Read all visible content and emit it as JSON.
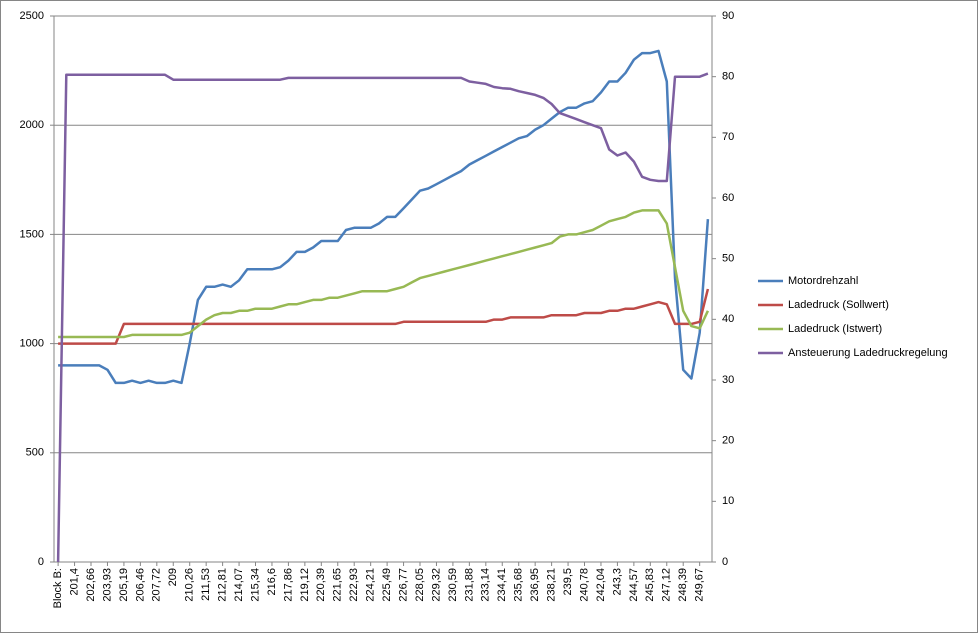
{
  "chart_data": {
    "type": "line",
    "categories": [
      "Block B:",
      null,
      "201,4",
      null,
      "202,66",
      null,
      "203,93",
      null,
      "205,19",
      null,
      "206,46",
      null,
      "207,72",
      null,
      "209",
      null,
      "210,26",
      null,
      "211,53",
      null,
      "212,81",
      null,
      "214,07",
      null,
      "215,34",
      null,
      "216,6",
      null,
      "217,86",
      null,
      "219,12",
      null,
      "220,39",
      null,
      "221,65",
      null,
      "222,93",
      null,
      "224,21",
      null,
      "225,49",
      null,
      "226,77",
      null,
      "228,05",
      null,
      "229,32",
      null,
      "230,59",
      null,
      "231,88",
      null,
      "233,14",
      null,
      "234,41",
      null,
      "235,68",
      null,
      "236,95",
      null,
      "238,21",
      null,
      "239,5",
      null,
      "240,78",
      null,
      "242,04",
      null,
      "243,3",
      null,
      "244,57",
      null,
      "245,83",
      null,
      "247,12",
      null,
      "248,39",
      null,
      "249,67",
      null
    ],
    "series": [
      {
        "name": "Motordrehzahl",
        "color": "#4a7ebb",
        "values": [
          900,
          900,
          900,
          900,
          900,
          900,
          880,
          820,
          820,
          830,
          820,
          830,
          820,
          820,
          830,
          820,
          1000,
          1200,
          1260,
          1260,
          1270,
          1260,
          1290,
          1340,
          1340,
          1340,
          1340,
          1350,
          1380,
          1420,
          1420,
          1440,
          1470,
          1470,
          1470,
          1520,
          1530,
          1530,
          1530,
          1550,
          1580,
          1580,
          1620,
          1660,
          1700,
          1710,
          1730,
          1750,
          1770,
          1790,
          1820,
          1840,
          1860,
          1880,
          1900,
          1920,
          1940,
          1950,
          1980,
          2000,
          2030,
          2060,
          2080,
          2080,
          2100,
          2110,
          2150,
          2200,
          2200,
          2240,
          2300,
          2330,
          2330,
          2340,
          2200,
          1300,
          880,
          840,
          1050,
          1570
        ]
      },
      {
        "name": "Ladedruck (Sollwert)",
        "color": "#be4b48",
        "values": [
          1000,
          1000,
          1000,
          1000,
          1000,
          1000,
          1000,
          1000,
          1090,
          1090,
          1090,
          1090,
          1090,
          1090,
          1090,
          1090,
          1090,
          1090,
          1090,
          1090,
          1090,
          1090,
          1090,
          1090,
          1090,
          1090,
          1090,
          1090,
          1090,
          1090,
          1090,
          1090,
          1090,
          1090,
          1090,
          1090,
          1090,
          1090,
          1090,
          1090,
          1090,
          1090,
          1100,
          1100,
          1100,
          1100,
          1100,
          1100,
          1100,
          1100,
          1100,
          1100,
          1100,
          1110,
          1110,
          1120,
          1120,
          1120,
          1120,
          1120,
          1130,
          1130,
          1130,
          1130,
          1140,
          1140,
          1140,
          1150,
          1150,
          1160,
          1160,
          1170,
          1180,
          1190,
          1180,
          1090,
          1090,
          1090,
          1100,
          1250
        ]
      },
      {
        "name": "Ladedruck (Istwert)",
        "color": "#98b954",
        "values": [
          1030,
          1030,
          1030,
          1030,
          1030,
          1030,
          1030,
          1030,
          1030,
          1040,
          1040,
          1040,
          1040,
          1040,
          1040,
          1040,
          1050,
          1080,
          1110,
          1130,
          1140,
          1140,
          1150,
          1150,
          1160,
          1160,
          1160,
          1170,
          1180,
          1180,
          1190,
          1200,
          1200,
          1210,
          1210,
          1220,
          1230,
          1240,
          1240,
          1240,
          1240,
          1250,
          1260,
          1280,
          1300,
          1310,
          1320,
          1330,
          1340,
          1350,
          1360,
          1370,
          1380,
          1390,
          1400,
          1410,
          1420,
          1430,
          1440,
          1450,
          1460,
          1490,
          1500,
          1500,
          1510,
          1520,
          1540,
          1560,
          1570,
          1580,
          1600,
          1610,
          1610,
          1610,
          1550,
          1350,
          1150,
          1080,
          1070,
          1150
        ]
      },
      {
        "name": "Ansteuerung Ladedruckregelung",
        "color": "#7d5fa0",
        "axis": "y2",
        "values": [
          0,
          80.3,
          80.3,
          80.3,
          80.3,
          80.3,
          80.3,
          80.3,
          80.3,
          80.3,
          80.3,
          80.3,
          80.3,
          80.3,
          79.5,
          79.5,
          79.5,
          79.5,
          79.5,
          79.5,
          79.5,
          79.5,
          79.5,
          79.5,
          79.5,
          79.5,
          79.5,
          79.5,
          79.8,
          79.8,
          79.8,
          79.8,
          79.8,
          79.8,
          79.8,
          79.8,
          79.8,
          79.8,
          79.8,
          79.8,
          79.8,
          79.8,
          79.8,
          79.8,
          79.8,
          79.8,
          79.8,
          79.8,
          79.8,
          79.8,
          79.2,
          79,
          78.8,
          78.3,
          78.1,
          78,
          77.6,
          77.3,
          77,
          76.5,
          75.5,
          74,
          73.5,
          73,
          72.5,
          72,
          71.5,
          68,
          67,
          67.5,
          66,
          63.5,
          63,
          62.8,
          62.8,
          80,
          80,
          80,
          80,
          80.5
        ]
      }
    ],
    "ylim": [
      0,
      2500
    ],
    "yticks": [
      0,
      500,
      1000,
      1500,
      2000,
      2500
    ],
    "y2lim": [
      0,
      90
    ],
    "y2ticks": [
      0,
      10,
      20,
      30,
      40,
      50,
      60,
      70,
      80,
      90
    ],
    "grid": true,
    "legend": "right"
  }
}
